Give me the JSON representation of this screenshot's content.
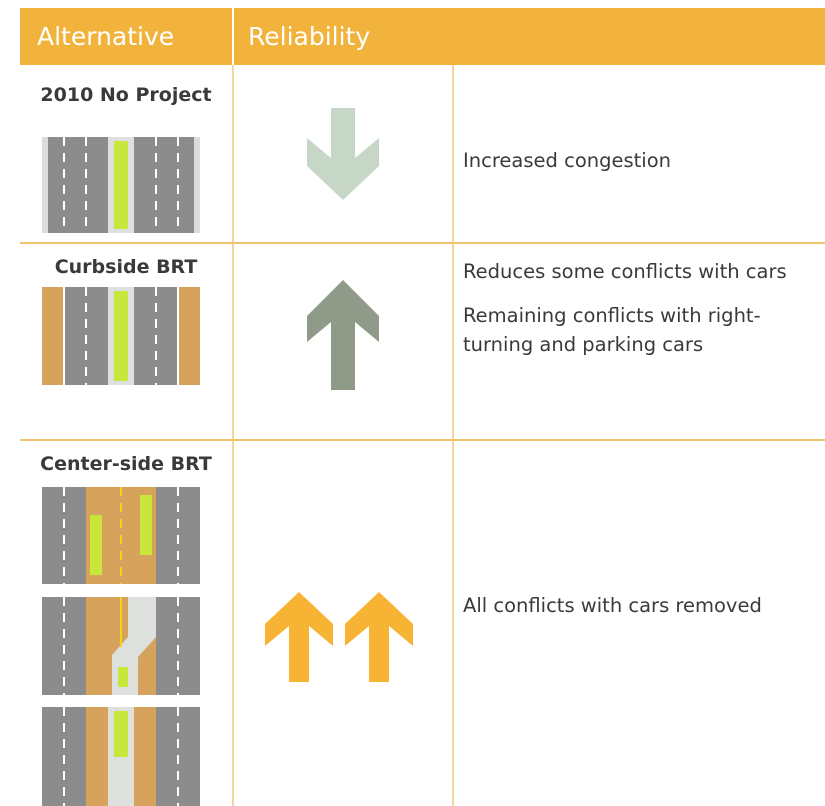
{
  "header": {
    "columns": [
      "Alternative",
      "Reliability"
    ]
  },
  "rows": [
    {
      "alternative": "2010 No Project",
      "notes": [
        "Increased congestion"
      ]
    },
    {
      "alternative": "Curbside BRT",
      "notes": [
        "Reduces some conflicts with cars",
        "Remaining conflicts with right-turning and parking cars"
      ]
    },
    {
      "alternative": "Center-side BRT",
      "notes": [
        "All conflicts with cars removed"
      ]
    }
  ]
}
